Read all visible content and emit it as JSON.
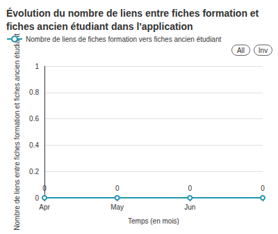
{
  "chart_data": {
    "type": "line",
    "title": "Évolution du nombre de liens entre fiches formation et fiches ancien étudiant dans l'application",
    "x_label": "Temps (en mois)",
    "y_label": "Nombre de liens entre fiches formation et fiches ancien étudiant",
    "categories": [
      "Apr",
      "May",
      "Jun",
      null
    ],
    "series": [
      {
        "name": "Nombre de liens de fiches formation vers fiches ancien étudiant",
        "color": "#2196b0",
        "values": [
          0,
          0,
          0,
          0
        ],
        "marker": "emptyCircle"
      }
    ],
    "ylim": [
      0,
      1
    ],
    "yticks": [
      0,
      0.2,
      0.4,
      0.6,
      0.8,
      1
    ],
    "grid": true,
    "data_labels": true,
    "legend": "top-left",
    "legend_selectors": [
      "All",
      "Inv"
    ]
  }
}
